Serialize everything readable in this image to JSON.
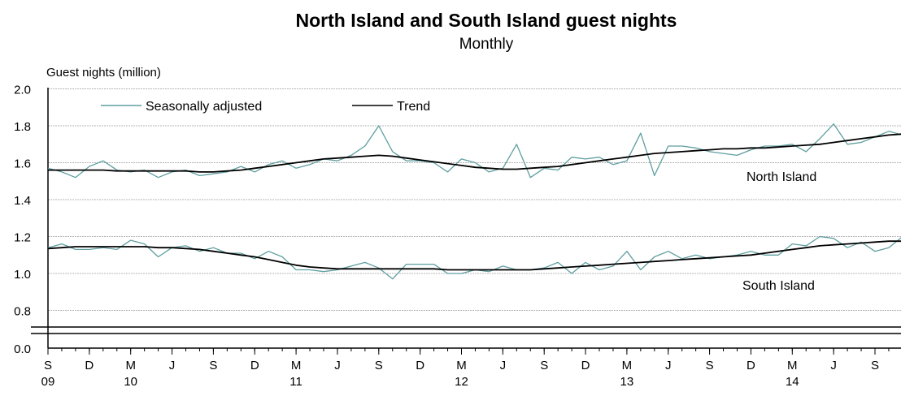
{
  "chart_data": {
    "type": "line",
    "title": "North Island and South Island guest nights",
    "subtitle": "Monthly",
    "ylabel": "Guest nights (million)",
    "xlabel": "",
    "ylim": [
      0.0,
      2.0
    ],
    "y_axis_break": [
      0.0,
      0.8
    ],
    "y_ticks": [
      "0.0",
      "0.8",
      "1.0",
      "1.2",
      "1.4",
      "1.6",
      "1.8",
      "2.0"
    ],
    "x_ticks": [
      {
        "m": "S",
        "y": "09"
      },
      {
        "m": "D",
        "y": ""
      },
      {
        "m": "M",
        "y": "10"
      },
      {
        "m": "J",
        "y": ""
      },
      {
        "m": "S",
        "y": ""
      },
      {
        "m": "D",
        "y": ""
      },
      {
        "m": "M",
        "y": "11"
      },
      {
        "m": "J",
        "y": ""
      },
      {
        "m": "S",
        "y": ""
      },
      {
        "m": "D",
        "y": ""
      },
      {
        "m": "M",
        "y": "12"
      },
      {
        "m": "J",
        "y": ""
      },
      {
        "m": "S",
        "y": ""
      },
      {
        "m": "D",
        "y": ""
      },
      {
        "m": "M",
        "y": "13"
      },
      {
        "m": "J",
        "y": ""
      },
      {
        "m": "S",
        "y": ""
      },
      {
        "m": "D",
        "y": ""
      },
      {
        "m": "M",
        "y": "14"
      },
      {
        "m": "J",
        "y": ""
      },
      {
        "m": "S",
        "y": ""
      }
    ],
    "x_start": "2009-09",
    "x_end": "2014-10",
    "grid": true,
    "legend": {
      "placement": "top-left",
      "items": [
        {
          "label": "Seasonally adjusted",
          "color": "#5f9ea0"
        },
        {
          "label": "Trend",
          "color": "#000000"
        }
      ]
    },
    "annotations": [
      "North Island",
      "South Island"
    ],
    "series": [
      {
        "region": "North Island",
        "kind": "Seasonally adjusted",
        "color": "#5f9ea0",
        "values": [
          1.57,
          1.55,
          1.52,
          1.58,
          1.61,
          1.56,
          1.55,
          1.56,
          1.52,
          1.55,
          1.56,
          1.53,
          1.54,
          1.55,
          1.58,
          1.55,
          1.59,
          1.61,
          1.57,
          1.59,
          1.62,
          1.61,
          1.64,
          1.69,
          1.8,
          1.66,
          1.61,
          1.61,
          1.6,
          1.55,
          1.62,
          1.6,
          1.55,
          1.57,
          1.7,
          1.52,
          1.57,
          1.56,
          1.63,
          1.62,
          1.63,
          1.59,
          1.61,
          1.76,
          1.53,
          1.69,
          1.69,
          1.68,
          1.66,
          1.65,
          1.64,
          1.67,
          1.69,
          1.69,
          1.7,
          1.66,
          1.73,
          1.81,
          1.7,
          1.71,
          1.74,
          1.77,
          1.75
        ]
      },
      {
        "region": "North Island",
        "kind": "Trend",
        "color": "#000000",
        "values": [
          1.56,
          1.56,
          1.56,
          1.56,
          1.56,
          1.555,
          1.555,
          1.555,
          1.555,
          1.555,
          1.555,
          1.55,
          1.55,
          1.555,
          1.56,
          1.57,
          1.58,
          1.59,
          1.6,
          1.61,
          1.62,
          1.625,
          1.63,
          1.635,
          1.64,
          1.635,
          1.625,
          1.615,
          1.605,
          1.595,
          1.585,
          1.575,
          1.57,
          1.565,
          1.565,
          1.57,
          1.575,
          1.58,
          1.59,
          1.6,
          1.61,
          1.62,
          1.63,
          1.64,
          1.65,
          1.655,
          1.66,
          1.665,
          1.67,
          1.675,
          1.675,
          1.68,
          1.68,
          1.685,
          1.69,
          1.695,
          1.7,
          1.71,
          1.72,
          1.73,
          1.74,
          1.75,
          1.755
        ]
      },
      {
        "region": "South Island",
        "kind": "Seasonally adjusted",
        "color": "#5f9ea0",
        "values": [
          1.14,
          1.16,
          1.13,
          1.13,
          1.14,
          1.13,
          1.18,
          1.16,
          1.09,
          1.14,
          1.15,
          1.12,
          1.14,
          1.11,
          1.11,
          1.08,
          1.12,
          1.09,
          1.02,
          1.02,
          1.01,
          1.02,
          1.04,
          1.06,
          1.03,
          0.97,
          1.05,
          1.05,
          1.05,
          1.0,
          1.0,
          1.02,
          1.01,
          1.04,
          1.02,
          1.02,
          1.03,
          1.06,
          1.0,
          1.06,
          1.02,
          1.04,
          1.12,
          1.02,
          1.09,
          1.12,
          1.08,
          1.1,
          1.08,
          1.09,
          1.1,
          1.12,
          1.1,
          1.1,
          1.16,
          1.15,
          1.2,
          1.19,
          1.14,
          1.17,
          1.12,
          1.14,
          1.2
        ]
      },
      {
        "region": "South Island",
        "kind": "Trend",
        "color": "#000000",
        "values": [
          1.135,
          1.14,
          1.145,
          1.145,
          1.145,
          1.145,
          1.145,
          1.145,
          1.14,
          1.14,
          1.135,
          1.13,
          1.12,
          1.11,
          1.1,
          1.09,
          1.075,
          1.06,
          1.045,
          1.035,
          1.03,
          1.025,
          1.025,
          1.025,
          1.025,
          1.025,
          1.025,
          1.025,
          1.025,
          1.02,
          1.02,
          1.02,
          1.02,
          1.02,
          1.02,
          1.02,
          1.025,
          1.03,
          1.035,
          1.04,
          1.045,
          1.05,
          1.055,
          1.06,
          1.065,
          1.07,
          1.075,
          1.08,
          1.085,
          1.09,
          1.095,
          1.1,
          1.11,
          1.12,
          1.13,
          1.14,
          1.15,
          1.155,
          1.16,
          1.165,
          1.17,
          1.175,
          1.175
        ]
      }
    ]
  }
}
